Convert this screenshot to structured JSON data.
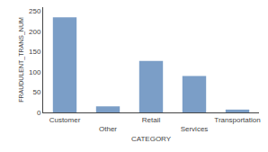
{
  "chart_data": {
    "type": "bar",
    "categories": [
      "Customer",
      "Other",
      "Retail",
      "Services",
      "Transportation"
    ],
    "values": [
      235,
      15,
      127,
      90,
      7
    ],
    "color": "#7b9ec7",
    "xlabel": "CATEGORY",
    "ylabel": "FRAUDULENT_TRANS_NUM",
    "ylim": [
      0,
      260
    ],
    "yticks": [
      0,
      50,
      100,
      150,
      200,
      250
    ],
    "grid": false
  }
}
